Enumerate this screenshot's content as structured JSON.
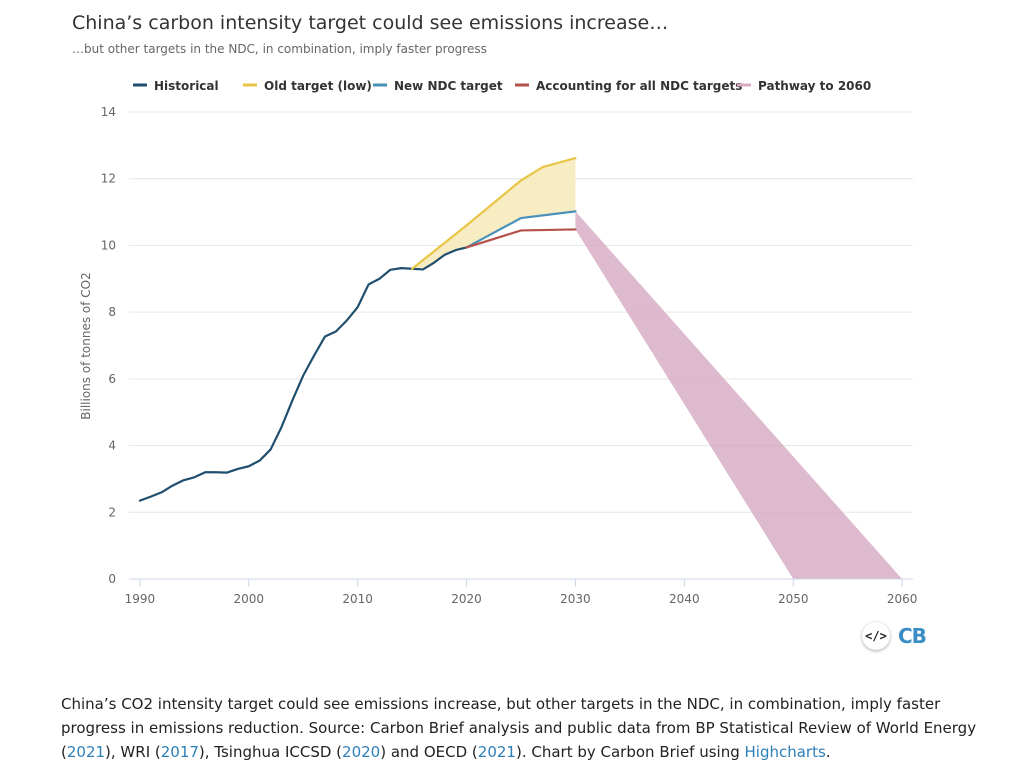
{
  "header": {
    "title": "China’s carbon intensity target could see emissions increase…",
    "subtitle": "…but other targets in the NDC, in combination, imply faster progress"
  },
  "logo": {
    "code_label": "</>",
    "brand": "CB"
  },
  "caption": {
    "part1": "China’s CO2 intensity target could see emissions increase, but other targets in the NDC, in combination, imply faster progress in emissions reduction. Source: Carbon Brief analysis and public data from BP Statistical Review of World Energy (",
    "link1": "2021",
    "part2": "), WRI (",
    "link2": "2017",
    "part3": "), Tsinghua ICCSD (",
    "link3": "2020",
    "part4": ") and OECD (",
    "link4": "2021",
    "part5": "). Chart by Carbon Brief using ",
    "link5": "Highcharts",
    "part6": "."
  },
  "chart_data": {
    "type": "line",
    "title": "",
    "xlabel": "",
    "ylabel": "Billions of tonnes of CO2",
    "xlim": [
      1989,
      2061
    ],
    "ylim": [
      0,
      14
    ],
    "xticks": [
      1990,
      2000,
      2010,
      2020,
      2030,
      2040,
      2050,
      2060
    ],
    "yticks": [
      0,
      2,
      4,
      6,
      8,
      10,
      12,
      14
    ],
    "grid": "horizontal",
    "legend_position": "top",
    "series": [
      {
        "name": "Historical",
        "color": "#1f4e6e",
        "points": [
          [
            1990,
            2.35
          ],
          [
            1991,
            2.47
          ],
          [
            1992,
            2.6
          ],
          [
            1993,
            2.8
          ],
          [
            1994,
            2.96
          ],
          [
            1995,
            3.05
          ],
          [
            1996,
            3.2
          ],
          [
            1997,
            3.2
          ],
          [
            1998,
            3.19
          ],
          [
            1999,
            3.3
          ],
          [
            2000,
            3.38
          ],
          [
            2001,
            3.55
          ],
          [
            2002,
            3.88
          ],
          [
            2003,
            4.55
          ],
          [
            2004,
            5.35
          ],
          [
            2005,
            6.1
          ],
          [
            2006,
            6.7
          ],
          [
            2007,
            7.27
          ],
          [
            2008,
            7.42
          ],
          [
            2009,
            7.75
          ],
          [
            2010,
            8.15
          ],
          [
            2011,
            8.83
          ],
          [
            2012,
            9.0
          ],
          [
            2013,
            9.27
          ],
          [
            2014,
            9.32
          ],
          [
            2015,
            9.3
          ],
          [
            2016,
            9.28
          ],
          [
            2017,
            9.48
          ],
          [
            2018,
            9.72
          ],
          [
            2019,
            9.86
          ],
          [
            2020,
            9.94
          ]
        ]
      },
      {
        "name": "Old target (low)",
        "color": "#e8c547",
        "points": [
          [
            2015,
            9.3
          ],
          [
            2020,
            10.6
          ],
          [
            2025,
            11.95
          ],
          [
            2027,
            12.35
          ],
          [
            2030,
            12.62
          ]
        ]
      },
      {
        "name": "New NDC target",
        "color": "#4a90b8",
        "points": [
          [
            2020,
            9.94
          ],
          [
            2025,
            10.82
          ],
          [
            2030,
            11.02
          ]
        ]
      },
      {
        "name": "Accounting for all NDC targets",
        "color": "#b5514a",
        "points": [
          [
            2020,
            9.94
          ],
          [
            2025,
            10.45
          ],
          [
            2030,
            10.48
          ]
        ]
      },
      {
        "name": "Pathway to 2060",
        "color": "#d4a9c1",
        "type": "area",
        "polygon": [
          [
            2030,
            11.02
          ],
          [
            2060,
            0
          ],
          [
            2050,
            0
          ],
          [
            2030,
            10.48
          ]
        ]
      }
    ],
    "shaded_band": {
      "color": "#f7e9b8",
      "between": [
        "Old target (low)",
        "New NDC target"
      ]
    }
  }
}
